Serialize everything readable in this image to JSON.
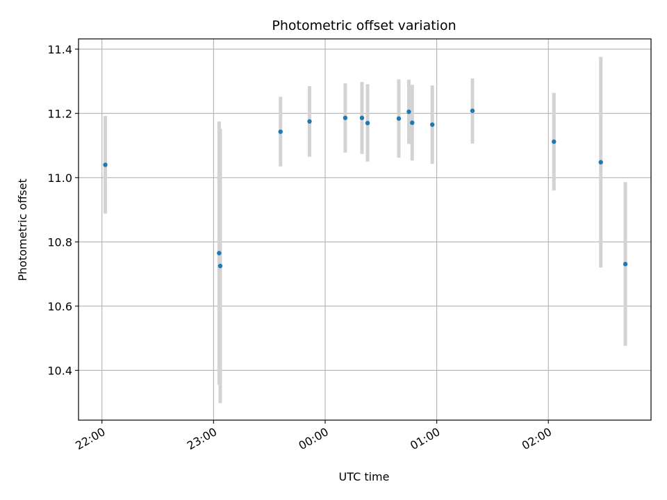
{
  "chart_data": {
    "type": "scatter",
    "title": "Photometric offset variation",
    "xlabel": "UTC time",
    "ylabel": "Photometric offset",
    "x_unit": "hours",
    "xlim": [
      21.79,
      26.92
    ],
    "ylim": [
      10.245,
      11.432
    ],
    "x_ticks": [
      {
        "value": 22,
        "label": "22:00"
      },
      {
        "value": 23,
        "label": "23:00"
      },
      {
        "value": 24,
        "label": "00:00"
      },
      {
        "value": 25,
        "label": "01:00"
      },
      {
        "value": 26,
        "label": "02:00"
      }
    ],
    "y_ticks": [
      {
        "value": 10.4,
        "label": "10.4"
      },
      {
        "value": 10.6,
        "label": "10.6"
      },
      {
        "value": 10.8,
        "label": "10.8"
      },
      {
        "value": 11.0,
        "label": "11.0"
      },
      {
        "value": 11.2,
        "label": "11.2"
      },
      {
        "value": 11.4,
        "label": "11.4"
      }
    ],
    "grid": true,
    "point_color": "#1f77b4",
    "error_color": "#d3d3d3",
    "points": [
      {
        "x": 22.03,
        "y": 11.04,
        "low": 10.888,
        "high": 11.192
      },
      {
        "x": 23.05,
        "y": 10.765,
        "low": 10.355,
        "high": 11.175
      },
      {
        "x": 23.06,
        "y": 10.725,
        "low": 10.298,
        "high": 11.152
      },
      {
        "x": 23.6,
        "y": 11.143,
        "low": 11.035,
        "high": 11.252
      },
      {
        "x": 23.86,
        "y": 11.175,
        "low": 11.065,
        "high": 11.285
      },
      {
        "x": 24.18,
        "y": 11.186,
        "low": 11.078,
        "high": 11.294
      },
      {
        "x": 24.33,
        "y": 11.186,
        "low": 11.074,
        "high": 11.298
      },
      {
        "x": 24.38,
        "y": 11.17,
        "low": 11.05,
        "high": 11.291
      },
      {
        "x": 24.66,
        "y": 11.184,
        "low": 11.062,
        "high": 11.306
      },
      {
        "x": 24.75,
        "y": 11.205,
        "low": 11.105,
        "high": 11.305
      },
      {
        "x": 24.78,
        "y": 11.171,
        "low": 11.053,
        "high": 11.289
      },
      {
        "x": 24.96,
        "y": 11.165,
        "low": 11.043,
        "high": 11.287
      },
      {
        "x": 25.32,
        "y": 11.208,
        "low": 11.106,
        "high": 11.309
      },
      {
        "x": 26.05,
        "y": 11.112,
        "low": 10.96,
        "high": 11.264
      },
      {
        "x": 26.47,
        "y": 11.048,
        "low": 10.72,
        "high": 11.376
      },
      {
        "x": 26.69,
        "y": 10.731,
        "low": 10.476,
        "high": 10.986
      }
    ]
  }
}
